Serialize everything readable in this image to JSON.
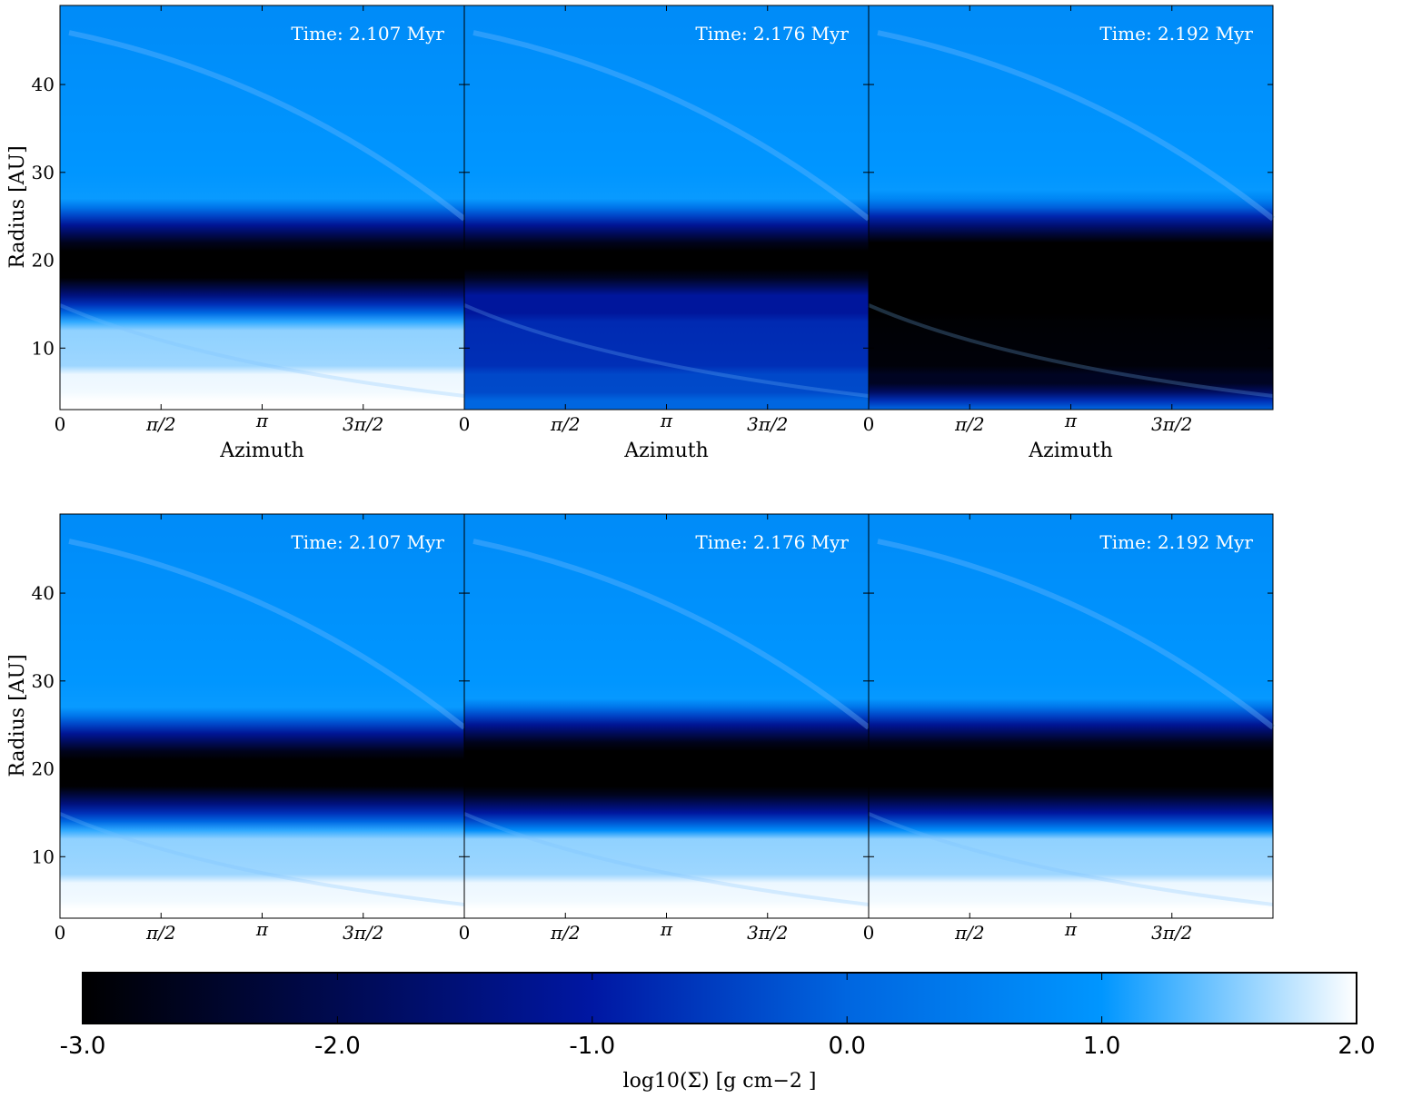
{
  "chart_data": {
    "type": "heatmap",
    "rows": [
      {
        "ylabel": "Radius [AU]",
        "xlabel": "Azimuth",
        "panels": [
          {
            "time_label": "Time: 2.107 Myr",
            "gap_inner": 15.5,
            "gap_outer": 24.0,
            "gap_depth": 1.0,
            "inner_depletion": 0.0
          },
          {
            "time_label": "Time: 2.176 Myr",
            "gap_inner": 16.0,
            "gap_outer": 24.0,
            "gap_depth": 1.0,
            "inner_depletion": 0.55
          },
          {
            "time_label": "Time: 2.192 Myr",
            "gap_inner": 3.0,
            "gap_outer": 24.5,
            "gap_depth": 1.0,
            "inner_depletion": 1.0
          }
        ]
      },
      {
        "ylabel": "Radius [AU]",
        "xlabel": "",
        "panels": [
          {
            "time_label": "Time: 2.107 Myr",
            "gap_inner": 15.5,
            "gap_outer": 24.0,
            "gap_depth": 1.0,
            "inner_depletion": 0.0
          },
          {
            "time_label": "Time: 2.176 Myr",
            "gap_inner": 15.0,
            "gap_outer": 25.0,
            "gap_depth": 1.0,
            "inner_depletion": 0.0
          },
          {
            "time_label": "Time: 2.192 Myr",
            "gap_inner": 15.0,
            "gap_outer": 25.0,
            "gap_depth": 1.0,
            "inner_depletion": 0.0
          }
        ]
      }
    ],
    "xlim": [
      0,
      6.2832
    ],
    "ylim": [
      3,
      49
    ],
    "xticks": [
      {
        "value": 0,
        "label": "0"
      },
      {
        "value": 1.5708,
        "label": "π/2"
      },
      {
        "value": 3.1416,
        "label": "π"
      },
      {
        "value": 4.7124,
        "label": "3π/2"
      }
    ],
    "yticks": [
      {
        "value": 10,
        "label": "10"
      },
      {
        "value": 20,
        "label": "20"
      },
      {
        "value": 30,
        "label": "30"
      },
      {
        "value": 40,
        "label": "40"
      }
    ],
    "colorbar": {
      "label": "log10(Σ) [g cm−2 ]",
      "range": [
        -3.0,
        2.0
      ],
      "ticks": [
        {
          "value": -3.0,
          "label": "-3.0"
        },
        {
          "value": -2.0,
          "label": "-2.0"
        },
        {
          "value": -1.0,
          "label": "-1.0"
        },
        {
          "value": 0.0,
          "label": "0.0"
        },
        {
          "value": 1.0,
          "label": "1.0"
        },
        {
          "value": 2.0,
          "label": "2.0"
        }
      ],
      "colors": [
        "#000000",
        "#000a50",
        "#0017a3",
        "#0066e0",
        "#0096ff",
        "#ffffff"
      ]
    }
  }
}
